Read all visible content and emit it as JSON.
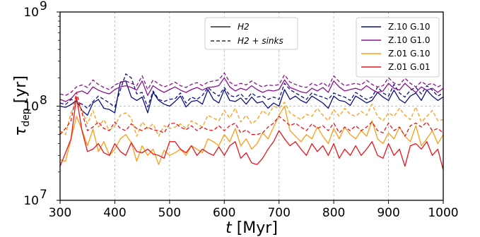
{
  "chart_data": {
    "type": "line",
    "xlabel_var": "t",
    "xlabel_unit": " [Myr]",
    "ylabel_base": "τ",
    "ylabel_sub": "dep",
    "ylabel_unit": " [yr]",
    "xlim": [
      300,
      1000
    ],
    "ylim": [
      10000000,
      1000000000
    ],
    "yscale": "log",
    "grid": "x-major dashed, y at 1e8 dashed",
    "x_ticks": [
      300,
      400,
      500,
      600,
      700,
      800,
      900,
      1000
    ],
    "y_ticks": [
      {
        "value": 10000000,
        "base": "10",
        "exp": "7"
      },
      {
        "value": 100000000,
        "base": "10",
        "exp": "8"
      },
      {
        "value": 1000000000,
        "base": "10",
        "exp": "9"
      }
    ],
    "style_legend": {
      "placement": "top-center",
      "entries": [
        {
          "label": "H2",
          "dash": "solid"
        },
        {
          "label": "H2 + sinks",
          "dash": "dashed"
        }
      ]
    },
    "color_legend": {
      "placement": "top-right",
      "entries": [
        {
          "label": "Z.10 G.10",
          "color": "#0b1082"
        },
        {
          "label": "Z.10 G1.0",
          "color": "#8b128f"
        },
        {
          "label": "Z.01 G.10",
          "color": "#ff9c14"
        },
        {
          "label": "Z.01 G.01",
          "color": "#e9141c"
        }
      ]
    },
    "x": [
      300,
      310,
      320,
      330,
      340,
      350,
      360,
      370,
      380,
      390,
      400,
      410,
      420,
      430,
      440,
      450,
      460,
      470,
      480,
      490,
      500,
      510,
      520,
      530,
      540,
      550,
      560,
      570,
      580,
      590,
      600,
      610,
      620,
      630,
      640,
      650,
      660,
      670,
      680,
      690,
      700,
      710,
      720,
      730,
      740,
      750,
      760,
      770,
      780,
      790,
      800,
      810,
      820,
      830,
      840,
      850,
      860,
      870,
      880,
      890,
      900,
      910,
      920,
      930,
      940,
      950,
      960,
      970,
      980,
      990,
      1000
    ],
    "series": [
      {
        "name": "Z.10 G.10",
        "variant": "H2",
        "color": "#0b1082",
        "dash": "solid",
        "values": [
          100000000,
          97000000,
          104000000,
          115000000,
          90000000,
          80000000,
          108000000,
          118000000,
          95000000,
          92000000,
          85000000,
          180000000,
          185000000,
          125000000,
          115000000,
          125000000,
          85000000,
          140000000,
          115000000,
          105000000,
          100000000,
          112000000,
          128000000,
          98000000,
          112000000,
          115000000,
          105000000,
          150000000,
          118000000,
          108000000,
          150000000,
          115000000,
          112000000,
          122000000,
          105000000,
          125000000,
          108000000,
          112000000,
          95000000,
          108000000,
          100000000,
          150000000,
          118000000,
          128000000,
          115000000,
          108000000,
          128000000,
          118000000,
          108000000,
          95000000,
          128000000,
          115000000,
          112000000,
          102000000,
          128000000,
          118000000,
          108000000,
          115000000,
          140000000,
          125000000,
          115000000,
          148000000,
          118000000,
          108000000,
          128000000,
          138000000,
          115000000,
          148000000,
          128000000,
          115000000,
          125000000
        ]
      },
      {
        "name": "Z.10 G.10",
        "variant": "H2 + sinks",
        "color": "#0b1082",
        "dash": "dashed",
        "values": [
          108000000,
          104000000,
          118000000,
          112000000,
          105000000,
          95000000,
          112000000,
          128000000,
          118000000,
          108000000,
          98000000,
          148000000,
          220000000,
          200000000,
          135000000,
          140000000,
          98000000,
          145000000,
          118000000,
          112000000,
          118000000,
          120000000,
          138000000,
          108000000,
          125000000,
          118000000,
          130000000,
          158000000,
          140000000,
          128000000,
          158000000,
          130000000,
          125000000,
          135000000,
          118000000,
          138000000,
          125000000,
          128000000,
          118000000,
          125000000,
          118000000,
          175000000,
          150000000,
          138000000,
          128000000,
          118000000,
          138000000,
          130000000,
          125000000,
          118000000,
          138000000,
          130000000,
          125000000,
          115000000,
          140000000,
          128000000,
          118000000,
          125000000,
          160000000,
          138000000,
          128000000,
          170000000,
          138000000,
          125000000,
          148000000,
          158000000,
          135000000,
          165000000,
          148000000,
          128000000,
          138000000
        ]
      },
      {
        "name": "Z.10 G1.0",
        "variant": "H2",
        "color": "#8b128f",
        "dash": "solid",
        "values": [
          118000000,
          112000000,
          120000000,
          140000000,
          145000000,
          135000000,
          160000000,
          148000000,
          140000000,
          135000000,
          150000000,
          160000000,
          165000000,
          158000000,
          148000000,
          185000000,
          130000000,
          165000000,
          150000000,
          140000000,
          150000000,
          160000000,
          148000000,
          140000000,
          150000000,
          158000000,
          148000000,
          158000000,
          160000000,
          165000000,
          200000000,
          160000000,
          145000000,
          155000000,
          148000000,
          165000000,
          150000000,
          140000000,
          148000000,
          145000000,
          150000000,
          190000000,
          158000000,
          150000000,
          142000000,
          138000000,
          155000000,
          145000000,
          158000000,
          140000000,
          185000000,
          160000000,
          145000000,
          150000000,
          155000000,
          148000000,
          165000000,
          150000000,
          140000000,
          145000000,
          175000000,
          155000000,
          148000000,
          175000000,
          155000000,
          140000000,
          160000000,
          148000000,
          155000000,
          140000000,
          155000000
        ]
      },
      {
        "name": "Z.10 G1.0",
        "variant": "H2 + sinks",
        "color": "#8b128f",
        "dash": "dashed",
        "values": [
          135000000,
          130000000,
          140000000,
          160000000,
          168000000,
          158000000,
          190000000,
          170000000,
          158000000,
          150000000,
          168000000,
          178000000,
          185000000,
          175000000,
          165000000,
          210000000,
          150000000,
          190000000,
          172000000,
          160000000,
          168000000,
          180000000,
          165000000,
          158000000,
          170000000,
          178000000,
          165000000,
          180000000,
          185000000,
          190000000,
          225000000,
          180000000,
          165000000,
          175000000,
          168000000,
          185000000,
          170000000,
          160000000,
          168000000,
          165000000,
          170000000,
          215000000,
          180000000,
          170000000,
          162000000,
          158000000,
          175000000,
          165000000,
          178000000,
          160000000,
          210000000,
          182000000,
          165000000,
          170000000,
          175000000,
          168000000,
          188000000,
          170000000,
          160000000,
          165000000,
          200000000,
          176000000,
          168000000,
          198000000,
          175000000,
          160000000,
          182000000,
          168000000,
          175000000,
          160000000,
          172000000
        ]
      },
      {
        "name": "Z.01 G.10",
        "variant": "H2",
        "color": "#ff9c14",
        "dash": "solid",
        "values": [
          27000000,
          26000000,
          45000000,
          78000000,
          56000000,
          38000000,
          57000000,
          33000000,
          42000000,
          30000000,
          35000000,
          45000000,
          50000000,
          41000000,
          26000000,
          38000000,
          30000000,
          35000000,
          24000000,
          34000000,
          30000000,
          32000000,
          35000000,
          30000000,
          38000000,
          35000000,
          32000000,
          45000000,
          42000000,
          38000000,
          50000000,
          42000000,
          58000000,
          38000000,
          45000000,
          35000000,
          40000000,
          52000000,
          45000000,
          60000000,
          80000000,
          100000000,
          55000000,
          48000000,
          42000000,
          50000000,
          45000000,
          60000000,
          48000000,
          40000000,
          58000000,
          45000000,
          60000000,
          50000000,
          45000000,
          55000000,
          48000000,
          70000000,
          45000000,
          40000000,
          52000000,
          45000000,
          60000000,
          48000000,
          42000000,
          62000000,
          38000000,
          45000000,
          55000000,
          40000000,
          50000000
        ]
      },
      {
        "name": "Z.01 G.10",
        "variant": "H2 + sinks",
        "color": "#ff9c14",
        "dash": "dashed",
        "values": [
          55000000,
          50000000,
          85000000,
          110000000,
          90000000,
          65000000,
          90000000,
          60000000,
          72000000,
          55000000,
          62000000,
          80000000,
          85000000,
          75000000,
          48000000,
          68000000,
          58000000,
          65000000,
          48000000,
          62000000,
          58000000,
          60000000,
          65000000,
          58000000,
          70000000,
          65000000,
          60000000,
          80000000,
          75000000,
          70000000,
          90000000,
          75000000,
          95000000,
          68000000,
          80000000,
          65000000,
          72000000,
          90000000,
          80000000,
          100000000,
          95000000,
          110000000,
          85000000,
          78000000,
          72000000,
          82000000,
          78000000,
          95000000,
          80000000,
          70000000,
          92000000,
          78000000,
          95000000,
          82000000,
          78000000,
          88000000,
          80000000,
          105000000,
          78000000,
          70000000,
          85000000,
          78000000,
          95000000,
          80000000,
          72000000,
          98000000,
          68000000,
          78000000,
          90000000,
          70000000,
          72000000
        ]
      },
      {
        "name": "Z.01 G.01",
        "variant": "H2",
        "color": "#e9141c",
        "dash": "solid",
        "values": [
          23000000,
          32000000,
          45000000,
          125000000,
          55000000,
          33000000,
          35000000,
          40000000,
          32000000,
          30000000,
          40000000,
          33000000,
          30000000,
          41000000,
          33000000,
          32000000,
          35000000,
          31000000,
          30000000,
          28000000,
          42000000,
          42000000,
          35000000,
          32000000,
          38000000,
          30000000,
          35000000,
          32000000,
          30000000,
          37000000,
          30000000,
          38000000,
          42000000,
          28000000,
          32000000,
          25000000,
          24000000,
          28000000,
          35000000,
          42000000,
          55000000,
          45000000,
          38000000,
          42000000,
          35000000,
          30000000,
          40000000,
          33000000,
          38000000,
          30000000,
          40000000,
          28000000,
          35000000,
          30000000,
          38000000,
          30000000,
          35000000,
          42000000,
          30000000,
          28000000,
          40000000,
          30000000,
          35000000,
          23000000,
          38000000,
          40000000,
          35000000,
          42000000,
          30000000,
          35000000,
          21000000
        ]
      },
      {
        "name": "Z.01 G.01",
        "variant": "H2 + sinks",
        "color": "#e9141c",
        "dash": "dashed",
        "values": [
          50000000,
          58000000,
          70000000,
          140000000,
          85000000,
          55000000,
          60000000,
          68000000,
          58000000,
          55000000,
          68000000,
          58000000,
          55000000,
          65000000,
          58000000,
          55000000,
          60000000,
          56000000,
          55000000,
          52000000,
          65000000,
          66000000,
          60000000,
          56000000,
          62000000,
          55000000,
          60000000,
          56000000,
          55000000,
          62000000,
          55000000,
          62000000,
          66000000,
          52000000,
          56000000,
          50000000,
          50000000,
          52000000,
          60000000,
          66000000,
          78000000,
          70000000,
          62000000,
          66000000,
          60000000,
          55000000,
          65000000,
          58000000,
          62000000,
          55000000,
          66000000,
          52000000,
          60000000,
          55000000,
          62000000,
          55000000,
          60000000,
          68000000,
          55000000,
          52000000,
          66000000,
          55000000,
          60000000,
          48000000,
          62000000,
          66000000,
          60000000,
          68000000,
          55000000,
          58000000,
          52000000
        ]
      }
    ]
  }
}
